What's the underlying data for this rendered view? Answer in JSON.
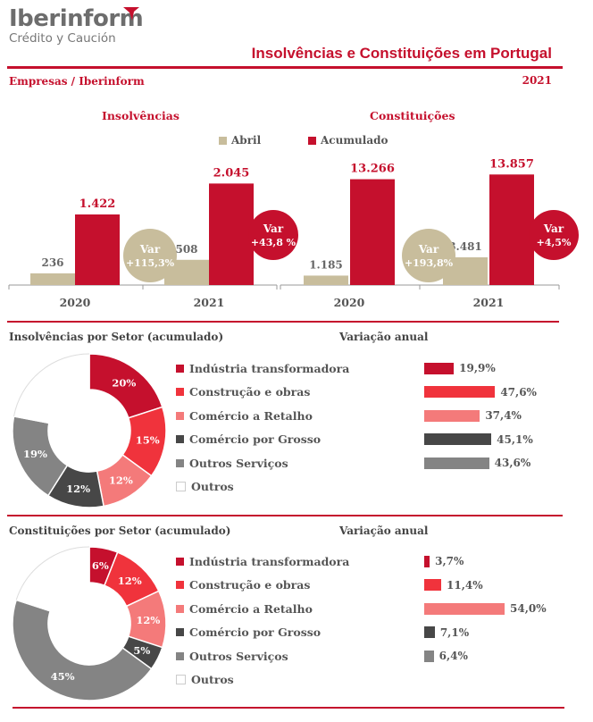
{
  "header": {
    "logo_name": "Iberinform",
    "logo_sub": "Crédito y Caución",
    "title": "Insolvências e Constituições em  Portugal",
    "subtitle": "Empresas / Iberinform",
    "year": "2021"
  },
  "colors": {
    "brand": "#c5102d",
    "khaki": "#c8bd9c",
    "grey": "#777777"
  },
  "legend": {
    "abril": "Abril",
    "acumulado": "Acumulado"
  },
  "chart_data": [
    {
      "type": "bar",
      "title": "Insolvências",
      "categories": [
        "2020",
        "2021"
      ],
      "series": [
        {
          "name": "Abril",
          "values": [
            236,
            508
          ],
          "labels": [
            "236",
            "508"
          ]
        },
        {
          "name": "Acumulado",
          "values": [
            1422,
            2045
          ],
          "labels": [
            "1.422",
            "2.045"
          ]
        }
      ],
      "ylim": [
        0,
        2700
      ],
      "annotations": {
        "abril": {
          "label": "Var",
          "value": "+115,3%"
        },
        "acumulado": {
          "label": "Var",
          "value": "+43,8 %"
        }
      }
    },
    {
      "type": "bar",
      "title": "Constituições",
      "categories": [
        "2020",
        "2021"
      ],
      "series": [
        {
          "name": "Abril",
          "values": [
            1185,
            3481
          ],
          "labels": [
            "1.185",
            "3.481"
          ]
        },
        {
          "name": "Acumulado",
          "values": [
            13266,
            13857
          ],
          "labels": [
            "13.266",
            "13.857"
          ]
        }
      ],
      "ylim": [
        0,
        16800
      ],
      "annotations": {
        "abril": {
          "label": "Var",
          "value": "+193,8%"
        },
        "acumulado": {
          "label": "Var",
          "value": "+4,5%"
        }
      }
    },
    {
      "type": "pie",
      "title": "Insolvências por Setor (acumulado)",
      "labels": [
        "Indústria transformadora",
        "Construção e obras",
        "Comércio a Retalho",
        "Comércio por Grosso",
        "Outros Serviços",
        "Outros"
      ],
      "values": [
        20,
        15,
        12,
        12,
        19,
        22
      ],
      "value_labels": [
        "20%",
        "15%",
        "12%",
        "12%",
        "19%",
        ""
      ],
      "colors": [
        "#c5102d",
        "#f0333c",
        "#f47a7a",
        "#474747",
        "#848484",
        "#ffffff"
      ]
    },
    {
      "type": "bar",
      "title": "Variação anual",
      "categories": [
        "Indústria transformadora",
        "Construção e obras",
        "Comércio a Retalho",
        "Comércio por Grosso",
        "Outros Serviços"
      ],
      "values": [
        19.9,
        47.6,
        37.4,
        45.1,
        43.6
      ],
      "labels": [
        "19,9%",
        "47,6%",
        "37,4%",
        "45,1%",
        "43,6%"
      ],
      "colors": [
        "#c5102d",
        "#f0333c",
        "#f47a7a",
        "#474747",
        "#848484"
      ]
    },
    {
      "type": "pie",
      "title": "Constituições por Setor (acumulado)",
      "labels": [
        "Indústria transformadora",
        "Construção e obras",
        "Comércio a Retalho",
        "Comércio por Grosso",
        "Outros Serviços",
        "Outros"
      ],
      "values": [
        6,
        12,
        12,
        5,
        45,
        20
      ],
      "value_labels": [
        "6%",
        "12%",
        "12%",
        "5%",
        "45%",
        ""
      ],
      "colors": [
        "#c5102d",
        "#f0333c",
        "#f47a7a",
        "#474747",
        "#848484",
        "#ffffff"
      ]
    },
    {
      "type": "bar",
      "title": "Variação anual",
      "categories": [
        "Indústria transformadora",
        "Construção e obras",
        "Comércio a Retalho",
        "Comércio por Grosso",
        "Outros Serviços"
      ],
      "values": [
        3.7,
        11.4,
        54.0,
        7.1,
        6.4
      ],
      "labels": [
        "3,7%",
        "11,4%",
        "54,0%",
        "7,1%",
        "6,4%"
      ],
      "colors": [
        "#c5102d",
        "#f0333c",
        "#f47a7a",
        "#474747",
        "#848484"
      ]
    }
  ]
}
